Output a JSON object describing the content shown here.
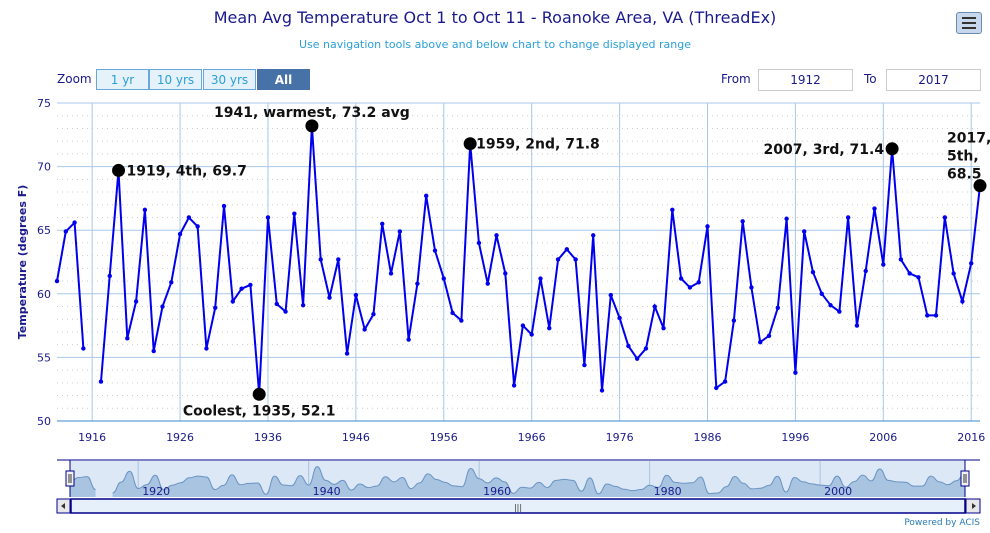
{
  "header": {
    "title": "Mean Avg Temperature Oct 1 to Oct 11 - Roanoke Area, VA (ThreadEx)",
    "subtitle": "Use navigation tools above and below chart to change displayed range",
    "menu_icon": "hamburger-icon"
  },
  "range_selector": {
    "zoom_label": "Zoom",
    "buttons": [
      "1 yr",
      "10 yrs",
      "30 yrs",
      "All"
    ],
    "selected": "All",
    "from_label": "From",
    "from_value": "1912",
    "to_label": "To",
    "to_value": "2017"
  },
  "credits": "Powered by ACIS",
  "colors": {
    "line": "#0000ee",
    "grid": "#a8c8e8",
    "navigator_fill": "#a8c4e0",
    "navigator_bg": "#dce8f6",
    "axis_text": "#1a1a8c"
  },
  "chart_data": {
    "type": "line",
    "ylabel": "Temperature (degrees F)",
    "ylim": [
      50,
      75
    ],
    "yticks": [
      50,
      55,
      60,
      65,
      70,
      75
    ],
    "xlim": [
      1912,
      2017
    ],
    "xticks": [
      1916,
      1926,
      1936,
      1946,
      1956,
      1966,
      1976,
      1986,
      1996,
      2006,
      2016
    ],
    "navigator_ticks": [
      1920,
      1940,
      1960,
      1980,
      2000
    ],
    "grid": true,
    "x": [
      1912,
      1913,
      1914,
      1915,
      1916,
      1917,
      1918,
      1919,
      1920,
      1921,
      1922,
      1923,
      1924,
      1925,
      1926,
      1927,
      1928,
      1929,
      1930,
      1931,
      1932,
      1933,
      1934,
      1935,
      1936,
      1937,
      1938,
      1939,
      1940,
      1941,
      1942,
      1943,
      1944,
      1945,
      1946,
      1947,
      1948,
      1949,
      1950,
      1951,
      1952,
      1953,
      1954,
      1955,
      1956,
      1957,
      1958,
      1959,
      1960,
      1961,
      1962,
      1963,
      1964,
      1965,
      1966,
      1967,
      1968,
      1969,
      1970,
      1971,
      1972,
      1973,
      1974,
      1975,
      1976,
      1977,
      1978,
      1979,
      1980,
      1981,
      1982,
      1983,
      1984,
      1985,
      1986,
      1987,
      1988,
      1989,
      1990,
      1991,
      1992,
      1993,
      1994,
      1995,
      1996,
      1997,
      1998,
      1999,
      2000,
      2001,
      2002,
      2003,
      2004,
      2005,
      2006,
      2007,
      2008,
      2009,
      2010,
      2011,
      2012,
      2013,
      2014,
      2015,
      2016,
      2017
    ],
    "y": [
      61.0,
      64.9,
      65.6,
      55.7,
      null,
      53.1,
      61.4,
      69.7,
      56.5,
      59.4,
      66.6,
      55.5,
      59.0,
      60.9,
      64.7,
      66.0,
      65.3,
      55.7,
      58.9,
      66.9,
      59.4,
      60.4,
      60.7,
      52.1,
      66.0,
      59.2,
      58.6,
      66.3,
      59.1,
      73.2,
      62.7,
      59.7,
      62.7,
      55.3,
      59.9,
      57.2,
      58.4,
      65.5,
      61.6,
      64.9,
      56.4,
      60.8,
      67.7,
      63.4,
      61.2,
      58.5,
      57.9,
      71.8,
      64.0,
      60.8,
      64.6,
      61.6,
      52.8,
      57.5,
      56.8,
      61.2,
      57.3,
      62.7,
      63.5,
      62.7,
      54.4,
      64.6,
      52.4,
      59.9,
      58.1,
      55.9,
      54.9,
      55.7,
      59.0,
      57.3,
      66.6,
      61.2,
      60.5,
      60.9,
      65.3,
      52.6,
      53.1,
      57.9,
      65.7,
      60.5,
      56.2,
      56.7,
      58.9,
      65.9,
      53.8,
      64.9,
      61.7,
      60.0,
      59.1,
      58.6,
      66.0,
      57.5,
      61.8,
      66.7,
      62.3,
      71.4,
      62.7,
      61.6,
      61.3,
      58.3,
      58.3,
      66.0,
      61.6,
      59.4,
      62.4,
      68.5
    ],
    "annotations": [
      {
        "year": 1919,
        "value": 69.7,
        "text": "1919, 4th, 69.7"
      },
      {
        "year": 1935,
        "value": 52.1,
        "text": "Coolest, 1935, 52.1"
      },
      {
        "year": 1941,
        "value": 73.2,
        "text": "1941, warmest, 73.2 avg"
      },
      {
        "year": 1959,
        "value": 71.8,
        "text": "1959, 2nd, 71.8"
      },
      {
        "year": 2007,
        "value": 71.4,
        "text": "2007, 3rd, 71.4"
      },
      {
        "year": 2017,
        "value": 68.5,
        "text": "2017, 5th, 68.5"
      }
    ]
  }
}
